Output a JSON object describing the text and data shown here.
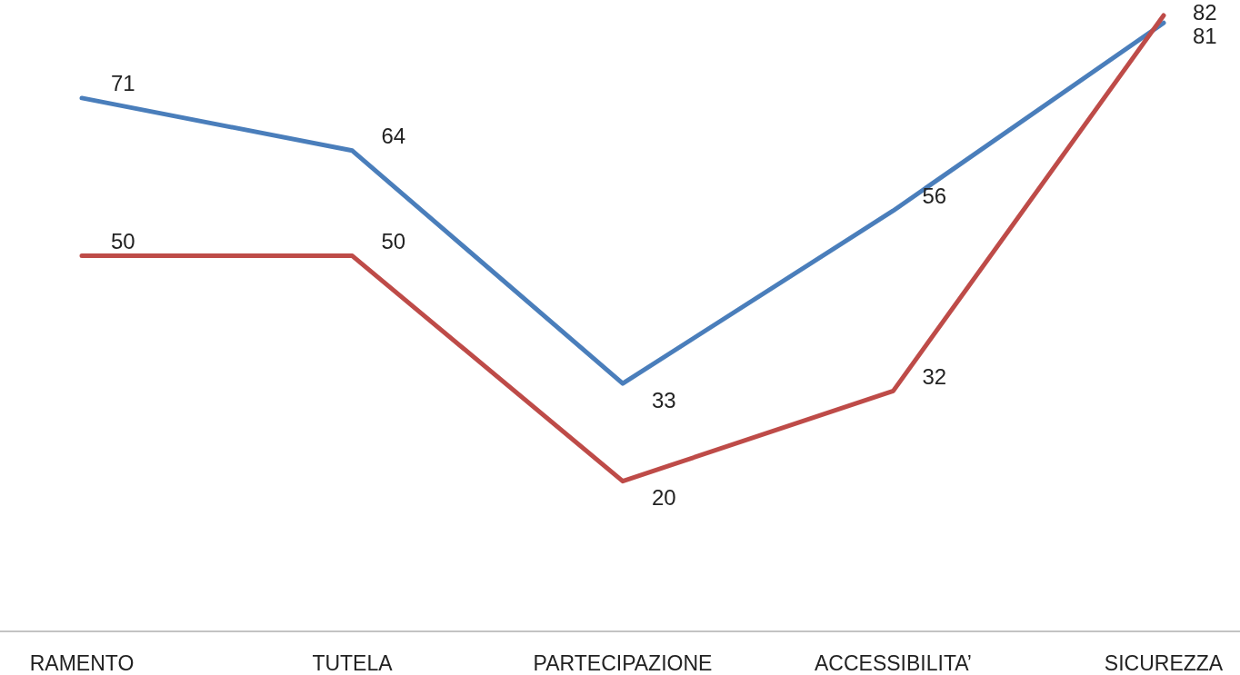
{
  "chart_data": {
    "type": "line",
    "categories": [
      "RAMENTO",
      "TUTELA",
      "PARTECIPAZIONE",
      "ACCESSIBILITA’",
      "SICUREZZA"
    ],
    "series": [
      {
        "color": "#4a7ebb",
        "values": [
          71,
          64,
          33,
          56,
          81
        ]
      },
      {
        "color": "#be4b48",
        "values": [
          50,
          50,
          20,
          32,
          82
        ]
      }
    ],
    "data_labels": true,
    "marker": "none",
    "line_style": "solid"
  }
}
